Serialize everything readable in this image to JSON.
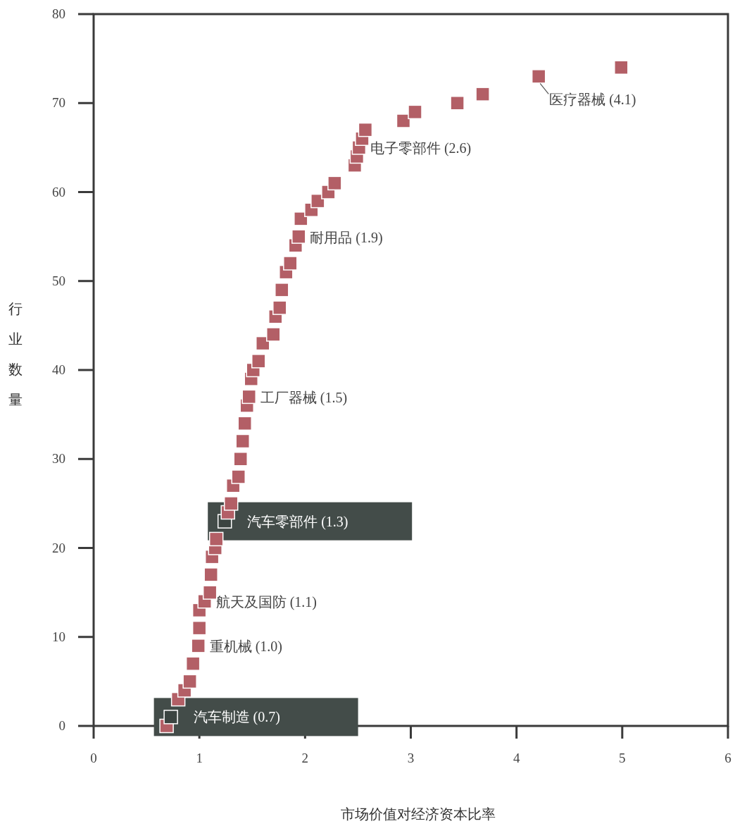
{
  "chart_data": {
    "type": "scatter",
    "xlabel": "市场价值对经济资本比率",
    "ylabel": "行业数量",
    "xlim": [
      0,
      6
    ],
    "ylim": [
      0,
      80
    ],
    "xticks": [
      0,
      1,
      2,
      3,
      4,
      5,
      6
    ],
    "yticks": [
      0,
      10,
      20,
      30,
      40,
      50,
      60,
      70,
      80
    ],
    "marker": "square",
    "grid": false,
    "x": [
      0.69,
      0.73,
      0.8,
      0.86,
      0.91,
      0.94,
      0.99,
      1.0,
      1.0,
      1.05,
      1.1,
      1.11,
      1.12,
      1.15,
      1.16,
      1.24,
      1.27,
      1.3,
      1.32,
      1.37,
      1.39,
      1.41,
      1.43,
      1.45,
      1.47,
      1.49,
      1.51,
      1.56,
      1.6,
      1.7,
      1.72,
      1.76,
      1.78,
      1.82,
      1.86,
      1.91,
      1.94,
      1.96,
      2.06,
      2.12,
      2.22,
      2.28,
      2.47,
      2.49,
      2.51,
      2.54,
      2.57,
      2.93,
      3.04,
      3.44,
      3.68,
      4.21,
      4.99
    ],
    "values": [
      0,
      1,
      3,
      4,
      5,
      7,
      9,
      11,
      13,
      14,
      15,
      17,
      19,
      20,
      21,
      23,
      24,
      25,
      27,
      28,
      30,
      32,
      34,
      36,
      37,
      39,
      40,
      41,
      43,
      44,
      46,
      47,
      49,
      51,
      52,
      54,
      55,
      57,
      58,
      59,
      60,
      61,
      63,
      64,
      65,
      66,
      67,
      68,
      69,
      70,
      71,
      73,
      74
    ],
    "colors": [
      "#b35f66",
      "#3b4441",
      "#b35f66",
      "#b35f66",
      "#b35f66",
      "#b35f66",
      "#b35f66",
      "#b35f66",
      "#b35f66",
      "#b35f66",
      "#b35f66",
      "#b35f66",
      "#b35f66",
      "#b35f66",
      "#b35f66",
      "#3b4441",
      "#b35f66",
      "#b35f66",
      "#b35f66",
      "#b35f66",
      "#b35f66",
      "#b35f66",
      "#b35f66",
      "#b35f66",
      "#b35f66",
      "#b35f66",
      "#b35f66",
      "#b35f66",
      "#b35f66",
      "#b35f66",
      "#b35f66",
      "#b35f66",
      "#b35f66",
      "#b35f66",
      "#b35f66",
      "#b35f66",
      "#b35f66",
      "#b35f66",
      "#b35f66",
      "#b35f66",
      "#b35f66",
      "#b35f66",
      "#b35f66",
      "#b35f66",
      "#b35f66",
      "#b35f66",
      "#b35f66",
      "#b35f66",
      "#b35f66",
      "#b35f66",
      "#b35f66",
      "#b35f66",
      "#b35f66"
    ],
    "annotations": [
      {
        "text": "汽车制造 (0.7)",
        "x": 0.73,
        "y": 1
      },
      {
        "text": "重机械 (1.0)",
        "x": 0.99,
        "y": 9
      },
      {
        "text": "航天及国防 (1.1)",
        "x": 1.05,
        "y": 14
      },
      {
        "text": "汽车零部件 (1.3)",
        "x": 1.24,
        "y": 23
      },
      {
        "text": "工厂器械 (1.5)",
        "x": 1.47,
        "y": 37
      },
      {
        "text": "耐用品 (1.9)",
        "x": 1.94,
        "y": 55
      },
      {
        "text": "电子零部件 (2.6)",
        "x": 2.51,
        "y": 65
      },
      {
        "text": "医疗器械 (4.1)",
        "x": 4.21,
        "y": 73
      }
    ]
  }
}
